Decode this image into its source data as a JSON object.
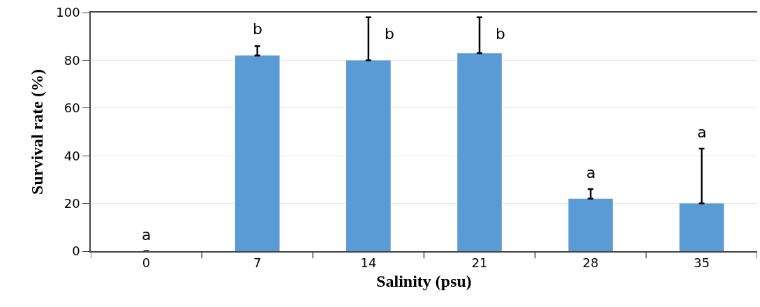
{
  "chart_data": {
    "type": "bar",
    "xlabel": "Salinity (psu)",
    "ylabel": "Survival rate (%)",
    "categories": [
      "0",
      "7",
      "14",
      "21",
      "28",
      "35"
    ],
    "values": [
      0,
      82,
      80,
      83,
      22,
      20
    ],
    "errors": [
      null,
      [
        82,
        86
      ],
      [
        80,
        98
      ],
      [
        83,
        98
      ],
      [
        22,
        26
      ],
      [
        20,
        43
      ]
    ],
    "color": "#5b9bd5",
    "ylim": [
      0,
      100
    ],
    "yticks": [
      0,
      20,
      40,
      60,
      80,
      100
    ],
    "grid": "y",
    "annotations": [
      "a",
      "b",
      "b",
      "b",
      "a",
      "a"
    ]
  }
}
